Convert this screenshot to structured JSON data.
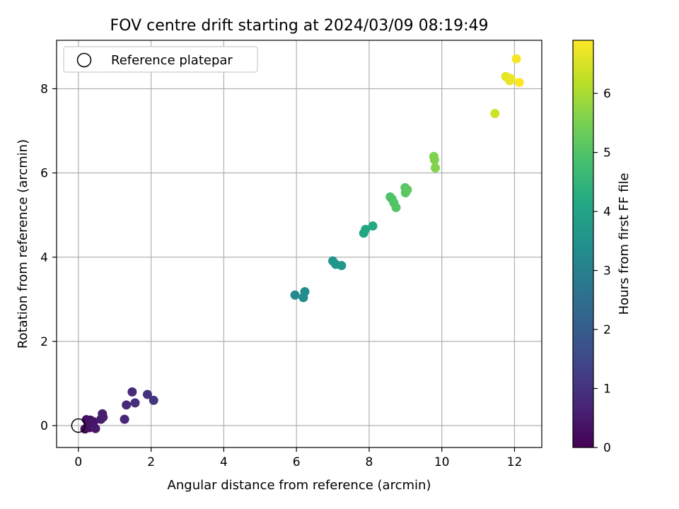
{
  "chart_data": {
    "type": "scatter",
    "title": "FOV centre drift starting at 2024/03/09 08:19:49",
    "xlabel": "Angular distance from reference (arcmin)",
    "ylabel": "Rotation from reference (arcmin)",
    "xlim": [
      -0.6,
      12.75
    ],
    "ylim": [
      -0.52,
      9.15
    ],
    "xticks": [
      0,
      2,
      4,
      6,
      8,
      10,
      12
    ],
    "yticks": [
      0,
      2,
      4,
      6,
      8
    ],
    "grid": true,
    "colormap": "viridis",
    "colorbar": {
      "label": "Hours from first FF file",
      "range": [
        0,
        6.9
      ],
      "ticks": [
        0,
        1,
        2,
        3,
        4,
        5,
        6
      ]
    },
    "legend": {
      "position": "top-left",
      "entries": [
        "Reference platepar"
      ]
    },
    "reference": {
      "x": 0,
      "y": 0
    },
    "points": [
      {
        "x": 0.18,
        "y": -0.08,
        "t": 0.15
      },
      {
        "x": 0.22,
        "y": 0.14,
        "t": 0.2
      },
      {
        "x": 0.27,
        "y": 0.05,
        "t": 0.25
      },
      {
        "x": 0.3,
        "y": -0.05,
        "t": 0.3
      },
      {
        "x": 0.33,
        "y": 0.13,
        "t": 0.32
      },
      {
        "x": 0.38,
        "y": 0.03,
        "t": 0.38
      },
      {
        "x": 0.42,
        "y": 0.09,
        "t": 0.4
      },
      {
        "x": 0.47,
        "y": -0.07,
        "t": 0.45
      },
      {
        "x": 0.62,
        "y": 0.15,
        "t": 0.5
      },
      {
        "x": 0.66,
        "y": 0.28,
        "t": 0.55
      },
      {
        "x": 0.68,
        "y": 0.2,
        "t": 0.58
      },
      {
        "x": 1.27,
        "y": 0.15,
        "t": 0.72
      },
      {
        "x": 1.32,
        "y": 0.49,
        "t": 0.78
      },
      {
        "x": 1.48,
        "y": 0.8,
        "t": 0.85
      },
      {
        "x": 1.56,
        "y": 0.54,
        "t": 0.9
      },
      {
        "x": 1.9,
        "y": 0.74,
        "t": 1.0
      },
      {
        "x": 2.07,
        "y": 0.6,
        "t": 1.05
      },
      {
        "x": 5.96,
        "y": 3.1,
        "t": 3.25
      },
      {
        "x": 6.19,
        "y": 3.04,
        "t": 3.3
      },
      {
        "x": 6.23,
        "y": 3.18,
        "t": 3.35
      },
      {
        "x": 7.0,
        "y": 3.91,
        "t": 3.55
      },
      {
        "x": 7.08,
        "y": 3.83,
        "t": 3.6
      },
      {
        "x": 7.24,
        "y": 3.8,
        "t": 3.65
      },
      {
        "x": 7.85,
        "y": 4.57,
        "t": 4.05
      },
      {
        "x": 7.9,
        "y": 4.66,
        "t": 4.1
      },
      {
        "x": 8.1,
        "y": 4.74,
        "t": 4.15
      },
      {
        "x": 8.58,
        "y": 5.43,
        "t": 4.95
      },
      {
        "x": 8.63,
        "y": 5.38,
        "t": 4.98
      },
      {
        "x": 8.68,
        "y": 5.29,
        "t": 5.0
      },
      {
        "x": 8.74,
        "y": 5.18,
        "t": 5.02
      },
      {
        "x": 8.99,
        "y": 5.65,
        "t": 5.1
      },
      {
        "x": 9.0,
        "y": 5.53,
        "t": 5.12
      },
      {
        "x": 9.05,
        "y": 5.6,
        "t": 5.15
      },
      {
        "x": 9.78,
        "y": 6.39,
        "t": 5.55
      },
      {
        "x": 9.8,
        "y": 6.31,
        "t": 5.58
      },
      {
        "x": 9.82,
        "y": 6.12,
        "t": 5.6
      },
      {
        "x": 11.46,
        "y": 7.41,
        "t": 6.4
      },
      {
        "x": 11.76,
        "y": 8.29,
        "t": 6.6
      },
      {
        "x": 11.82,
        "y": 8.26,
        "t": 6.65
      },
      {
        "x": 11.87,
        "y": 8.19,
        "t": 6.7
      },
      {
        "x": 11.9,
        "y": 8.24,
        "t": 6.72
      },
      {
        "x": 12.05,
        "y": 8.71,
        "t": 6.8
      },
      {
        "x": 12.13,
        "y": 8.15,
        "t": 6.9
      }
    ]
  }
}
